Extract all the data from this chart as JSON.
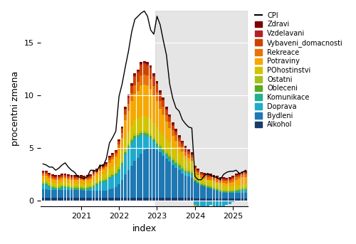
{
  "colors": {
    "Zdravi": "#7B0000",
    "Vzdelavani": "#B22222",
    "Vybaveni_domacnosti": "#CC4400",
    "Rekreace": "#E8720C",
    "Potraviny": "#F5A800",
    "POhostinstvi": "#D4C400",
    "Ostatni": "#A8C020",
    "Obleceni": "#5AAA20",
    "Komunikace": "#20B090",
    "Doprava": "#20AACC",
    "Bydleni": "#1E78B4",
    "Alkohol": "#1A3A6B"
  },
  "legend_order": [
    "CPI",
    "Zdravi",
    "Vzdelavani",
    "Vybaveni_domacnosti",
    "Rekreace",
    "Potraviny",
    "POhostinstvi",
    "Ostatni",
    "Obleceni",
    "Komunikace",
    "Doprava",
    "Bydleni",
    "Alkohol"
  ],
  "stack_order": [
    "Alkohol",
    "Bydleni",
    "Doprava",
    "Komunikace",
    "Obleceni",
    "Ostatni",
    "POhostinstvi",
    "Potraviny",
    "Rekreace",
    "Vybaveni_domacnosti",
    "Vzdelavani",
    "Zdravi"
  ],
  "ylabel": "procentni zmena",
  "xlabel": "index",
  "ylim": [
    -0.5,
    18
  ],
  "shaded_start": 36,
  "xtick_labels": [
    "2021",
    "2022",
    "2023",
    "2024",
    "2025"
  ],
  "xtick_positions": [
    12,
    24,
    36,
    48,
    60
  ],
  "data": {
    "Alkohol": [
      0.3,
      0.3,
      0.3,
      0.3,
      0.3,
      0.3,
      0.3,
      0.3,
      0.3,
      0.3,
      0.3,
      0.3,
      0.3,
      0.3,
      0.3,
      0.3,
      0.3,
      0.3,
      0.3,
      0.3,
      0.3,
      0.3,
      0.3,
      0.3,
      0.3,
      0.3,
      0.3,
      0.3,
      0.3,
      0.3,
      0.3,
      0.3,
      0.3,
      0.3,
      0.3,
      0.3,
      0.3,
      0.3,
      0.3,
      0.3,
      0.3,
      0.3,
      0.3,
      0.3,
      0.3,
      0.3,
      0.3,
      0.3,
      0.25,
      0.25,
      0.25,
      0.25,
      0.25,
      0.25,
      0.25,
      0.25,
      0.25,
      0.25,
      0.25,
      0.25,
      0.25,
      0.25,
      0.25,
      0.25,
      0.25
    ],
    "Bydleni": [
      0.8,
      0.8,
      0.7,
      0.7,
      0.7,
      0.7,
      0.7,
      0.7,
      0.7,
      0.7,
      0.7,
      0.7,
      0.7,
      0.65,
      0.65,
      0.65,
      0.65,
      0.65,
      0.65,
      0.65,
      0.65,
      0.8,
      0.9,
      1.0,
      1.3,
      1.7,
      2.2,
      2.6,
      3.0,
      3.5,
      3.8,
      4.2,
      4.5,
      4.7,
      4.8,
      4.7,
      4.5,
      4.3,
      4.0,
      3.7,
      3.4,
      3.1,
      2.8,
      2.6,
      2.3,
      2.1,
      2.0,
      1.9,
      1.6,
      1.4,
      1.2,
      1.1,
      1.0,
      0.9,
      0.8,
      0.7,
      0.6,
      0.5,
      0.5,
      0.5,
      0.5,
      0.5,
      0.5,
      0.5,
      0.5
    ],
    "Doprava": [
      0.4,
      0.4,
      0.3,
      0.15,
      0.08,
      0.1,
      0.2,
      0.2,
      0.15,
      0.08,
      0.05,
      0.05,
      0.05,
      0.05,
      0.1,
      0.2,
      0.3,
      0.5,
      0.7,
      0.8,
      0.9,
      1.0,
      1.1,
      1.1,
      1.2,
      1.4,
      1.9,
      2.1,
      2.2,
      2.1,
      1.9,
      1.7,
      1.4,
      1.1,
      0.8,
      0.6,
      0.4,
      0.3,
      0.25,
      0.25,
      0.25,
      0.25,
      0.25,
      0.25,
      0.25,
      0.25,
      0.25,
      0.25,
      -0.4,
      -0.6,
      -0.7,
      -0.6,
      -0.5,
      -0.4,
      -0.5,
      -0.6,
      -0.7,
      -0.5,
      -0.4,
      -0.3,
      -0.1,
      0.1,
      0.15,
      0.2,
      0.25
    ],
    "Komunikace": [
      0.08,
      0.08,
      0.08,
      0.08,
      0.08,
      0.08,
      0.08,
      0.08,
      0.08,
      0.08,
      0.08,
      0.08,
      0.08,
      0.08,
      0.08,
      0.08,
      0.08,
      0.08,
      0.08,
      0.08,
      0.08,
      0.08,
      0.08,
      0.08,
      0.08,
      0.08,
      0.08,
      0.08,
      0.08,
      0.08,
      0.08,
      0.08,
      0.08,
      0.08,
      0.08,
      0.08,
      0.08,
      0.08,
      0.08,
      0.08,
      0.08,
      0.08,
      0.08,
      0.08,
      0.08,
      0.08,
      0.08,
      0.08,
      0.05,
      0.05,
      0.05,
      0.05,
      0.05,
      0.05,
      0.05,
      0.05,
      0.05,
      0.05,
      0.05,
      0.05,
      0.05,
      0.05,
      0.05,
      0.05,
      0.05
    ],
    "Obleceni": [
      0.08,
      0.08,
      0.08,
      0.08,
      0.08,
      0.08,
      0.08,
      0.08,
      0.08,
      0.08,
      0.08,
      0.08,
      0.08,
      0.08,
      0.08,
      0.08,
      0.08,
      0.08,
      0.08,
      0.08,
      0.08,
      0.08,
      0.08,
      0.08,
      0.1,
      0.1,
      0.15,
      0.15,
      0.15,
      0.15,
      0.15,
      0.15,
      0.15,
      0.15,
      0.15,
      0.15,
      0.15,
      0.15,
      0.15,
      0.15,
      0.15,
      0.15,
      0.15,
      0.15,
      0.15,
      0.15,
      0.15,
      0.15,
      0.08,
      0.08,
      0.08,
      0.08,
      0.08,
      0.08,
      0.08,
      0.08,
      0.08,
      0.08,
      0.08,
      0.08,
      0.08,
      0.08,
      0.08,
      0.08,
      0.08
    ],
    "Ostatni": [
      0.15,
      0.15,
      0.15,
      0.15,
      0.15,
      0.15,
      0.15,
      0.15,
      0.15,
      0.15,
      0.15,
      0.15,
      0.15,
      0.15,
      0.15,
      0.15,
      0.15,
      0.15,
      0.15,
      0.15,
      0.15,
      0.15,
      0.15,
      0.15,
      0.2,
      0.2,
      0.2,
      0.2,
      0.2,
      0.2,
      0.2,
      0.2,
      0.2,
      0.2,
      0.2,
      0.2,
      0.2,
      0.2,
      0.2,
      0.2,
      0.2,
      0.2,
      0.2,
      0.2,
      0.2,
      0.2,
      0.2,
      0.2,
      0.15,
      0.15,
      0.15,
      0.15,
      0.15,
      0.15,
      0.15,
      0.15,
      0.15,
      0.15,
      0.15,
      0.15,
      0.15,
      0.15,
      0.15,
      0.15,
      0.15
    ],
    "POhostinstvi": [
      0.25,
      0.25,
      0.25,
      0.25,
      0.25,
      0.25,
      0.25,
      0.25,
      0.25,
      0.25,
      0.25,
      0.25,
      0.25,
      0.25,
      0.25,
      0.25,
      0.35,
      0.35,
      0.45,
      0.45,
      0.55,
      0.65,
      0.65,
      0.75,
      0.85,
      0.95,
      1.05,
      1.15,
      1.25,
      1.35,
      1.35,
      1.45,
      1.45,
      1.45,
      1.45,
      1.35,
      1.35,
      1.25,
      1.25,
      1.15,
      1.15,
      1.05,
      1.05,
      0.95,
      0.95,
      0.85,
      0.85,
      0.75,
      0.65,
      0.55,
      0.45,
      0.45,
      0.45,
      0.45,
      0.45,
      0.45,
      0.45,
      0.45,
      0.35,
      0.35,
      0.35,
      0.35,
      0.35,
      0.35,
      0.35
    ],
    "Potraviny": [
      0.35,
      0.35,
      0.35,
      0.35,
      0.35,
      0.35,
      0.35,
      0.35,
      0.35,
      0.35,
      0.35,
      0.35,
      0.35,
      0.35,
      0.35,
      0.35,
      0.45,
      0.45,
      0.45,
      0.45,
      0.45,
      0.55,
      0.65,
      0.75,
      0.95,
      1.25,
      1.75,
      1.95,
      2.25,
      2.45,
      2.65,
      2.85,
      2.95,
      2.95,
      2.85,
      2.65,
      2.45,
      2.15,
      1.95,
      1.65,
      1.35,
      1.05,
      0.85,
      0.65,
      0.45,
      0.35,
      0.25,
      0.15,
      -0.1,
      -0.2,
      -0.2,
      -0.1,
      0.0,
      0.1,
      0.1,
      0.1,
      0.1,
      0.2,
      0.25,
      0.3,
      0.4,
      0.5,
      0.55,
      0.65,
      0.65
    ],
    "Rekreace": [
      0.15,
      0.15,
      0.15,
      0.15,
      0.15,
      0.15,
      0.15,
      0.15,
      0.15,
      0.15,
      0.15,
      0.15,
      0.15,
      0.15,
      0.15,
      0.15,
      0.15,
      0.15,
      0.15,
      0.15,
      0.15,
      0.25,
      0.25,
      0.25,
      0.35,
      0.45,
      0.55,
      0.65,
      0.75,
      0.85,
      0.85,
      0.95,
      0.95,
      0.95,
      0.95,
      0.85,
      0.85,
      0.75,
      0.75,
      0.65,
      0.65,
      0.55,
      0.55,
      0.45,
      0.45,
      0.35,
      0.35,
      0.35,
      0.25,
      0.25,
      0.25,
      0.25,
      0.25,
      0.25,
      0.25,
      0.25,
      0.25,
      0.25,
      0.25,
      0.25,
      0.25,
      0.25,
      0.25,
      0.25,
      0.25
    ],
    "Vybaveni_domacnosti": [
      0.12,
      0.12,
      0.12,
      0.12,
      0.12,
      0.12,
      0.12,
      0.12,
      0.12,
      0.12,
      0.12,
      0.12,
      0.12,
      0.12,
      0.12,
      0.12,
      0.12,
      0.12,
      0.12,
      0.12,
      0.12,
      0.18,
      0.18,
      0.18,
      0.28,
      0.38,
      0.48,
      0.58,
      0.68,
      0.78,
      0.88,
      0.98,
      0.98,
      0.98,
      0.98,
      0.88,
      0.78,
      0.68,
      0.58,
      0.48,
      0.38,
      0.38,
      0.28,
      0.28,
      0.28,
      0.28,
      0.18,
      0.18,
      0.12,
      0.12,
      0.12,
      0.12,
      0.12,
      0.12,
      0.12,
      0.12,
      0.12,
      0.12,
      0.12,
      0.12,
      0.12,
      0.12,
      0.12,
      0.12,
      0.12
    ],
    "Vzdelavani": [
      0.08,
      0.08,
      0.08,
      0.08,
      0.08,
      0.08,
      0.08,
      0.08,
      0.08,
      0.08,
      0.08,
      0.08,
      0.08,
      0.08,
      0.08,
      0.08,
      0.08,
      0.08,
      0.08,
      0.08,
      0.08,
      0.08,
      0.08,
      0.08,
      0.08,
      0.08,
      0.08,
      0.12,
      0.12,
      0.12,
      0.12,
      0.12,
      0.12,
      0.12,
      0.12,
      0.12,
      0.12,
      0.12,
      0.12,
      0.12,
      0.12,
      0.12,
      0.12,
      0.12,
      0.12,
      0.12,
      0.12,
      0.12,
      0.08,
      0.08,
      0.08,
      0.08,
      0.08,
      0.08,
      0.08,
      0.08,
      0.08,
      0.08,
      0.08,
      0.08,
      0.08,
      0.08,
      0.08,
      0.08,
      0.08
    ],
    "Zdravi": [
      0.12,
      0.12,
      0.12,
      0.12,
      0.12,
      0.12,
      0.12,
      0.12,
      0.12,
      0.12,
      0.12,
      0.12,
      0.12,
      0.12,
      0.12,
      0.12,
      0.12,
      0.12,
      0.12,
      0.12,
      0.12,
      0.12,
      0.12,
      0.12,
      0.12,
      0.12,
      0.18,
      0.18,
      0.18,
      0.18,
      0.18,
      0.18,
      0.18,
      0.18,
      0.18,
      0.18,
      0.18,
      0.18,
      0.18,
      0.18,
      0.18,
      0.18,
      0.18,
      0.18,
      0.18,
      0.18,
      0.18,
      0.18,
      0.12,
      0.12,
      0.12,
      0.12,
      0.12,
      0.12,
      0.12,
      0.12,
      0.12,
      0.12,
      0.12,
      0.12,
      0.12,
      0.12,
      0.12,
      0.12,
      0.12
    ]
  },
  "cpi": [
    3.5,
    3.4,
    3.2,
    3.2,
    2.9,
    3.1,
    3.4,
    3.6,
    3.2,
    2.9,
    2.7,
    2.3,
    2.2,
    2.1,
    2.3,
    2.9,
    2.9,
    2.8,
    3.4,
    3.3,
    4.0,
    5.5,
    6.0,
    6.6,
    9.9,
    11.1,
    12.7,
    14.2,
    16.0,
    17.2,
    17.5,
    17.8,
    18.0,
    17.5,
    16.2,
    15.8,
    17.5,
    16.7,
    15.2,
    13.8,
    11.1,
    9.7,
    8.8,
    8.5,
    7.7,
    7.3,
    7.0,
    6.9,
    2.3,
    2.0,
    2.0,
    2.4,
    2.6,
    2.4,
    2.3,
    2.2,
    2.0,
    2.5,
    2.7,
    2.8,
    2.8,
    2.9,
    2.6,
    2.7,
    2.9
  ]
}
